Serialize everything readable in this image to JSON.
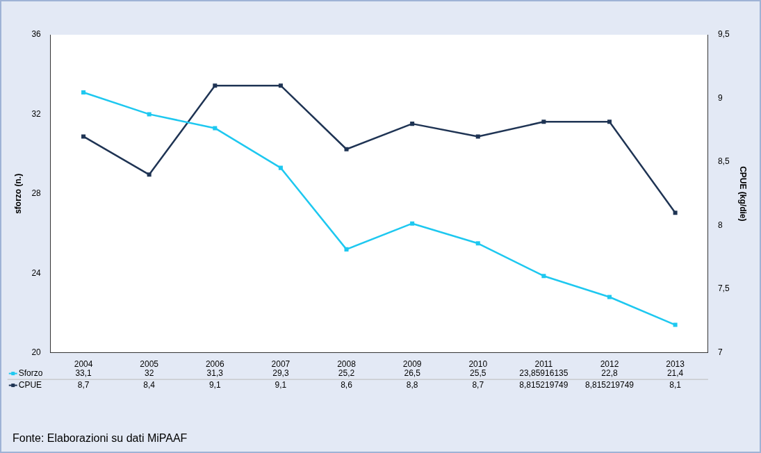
{
  "chart_data": {
    "type": "line",
    "ylabel": "sforzo (n.)",
    "y2label": "CPUE (kg/die)",
    "categories": [
      "2004",
      "2005",
      "2006",
      "2007",
      "2008",
      "2009",
      "2010",
      "2011",
      "2012",
      "2013"
    ],
    "series": [
      {
        "name": "Sforzo",
        "color": "#1ec8f0",
        "values": [
          33.1,
          32,
          31.3,
          29.3,
          25.2,
          26.5,
          25.5,
          23.85916135,
          22.8,
          21.4
        ],
        "value_labels": [
          "33,1",
          "32",
          "31,3",
          "29,3",
          "25,2",
          "26,5",
          "25,5",
          "23,85916135",
          "22,8",
          "21,4"
        ]
      },
      {
        "name": "CPUE",
        "color": "#1f3454",
        "axis": "y2",
        "values": [
          8.7,
          8.4,
          9.1,
          9.1,
          8.6,
          8.8,
          8.7,
          8.815219749,
          8.815219749,
          8.1
        ],
        "value_labels": [
          "8,7",
          "8,4",
          "9,1",
          "9,1",
          "8,6",
          "8,8",
          "8,7",
          "8,815219749",
          "8,815219749",
          "8,1"
        ]
      }
    ],
    "ylim": [
      20,
      36
    ],
    "yticks": [
      20,
      24,
      28,
      32,
      36
    ],
    "y2lim": [
      7,
      9.5
    ],
    "y2ticks": [
      7,
      {
        "value": 7.5,
        "label": "7,5"
      },
      8,
      {
        "value": 8.5,
        "label": "8,5"
      },
      9,
      {
        "value": 9.5,
        "label": "9,5"
      }
    ],
    "grid": false,
    "legend": "bottom",
    "marker": "square",
    "line_style": "solid",
    "annotations": [
      "Fonte: Elaborazioni su dati MiPAAF"
    ]
  }
}
